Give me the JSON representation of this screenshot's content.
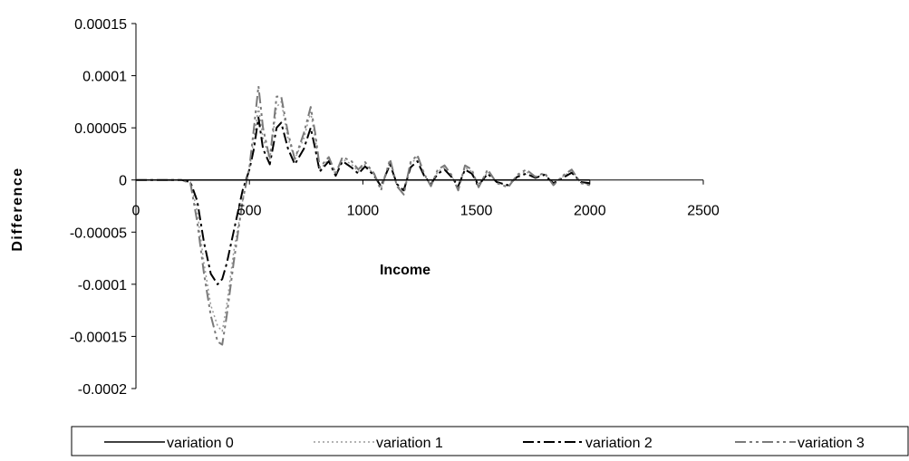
{
  "chart_data": {
    "type": "line",
    "title": "",
    "xlabel": "Income",
    "ylabel": "Difference",
    "xlim": [
      0,
      2500
    ],
    "ylim": [
      -0.0002,
      0.00015
    ],
    "x_ticks": [
      0,
      500,
      1000,
      1500,
      2000,
      2500
    ],
    "x_tick_labels": [
      "0",
      "500",
      "1000",
      "1500",
      "2000",
      "2500"
    ],
    "y_ticks": [
      0.00015,
      0.0001,
      5e-05,
      0,
      -5e-05,
      -0.0001,
      -0.00015,
      -0.0002
    ],
    "y_tick_labels": [
      "0.00015",
      "0.0001",
      "0.00005",
      "0",
      "-0.00005",
      "-0.0001",
      "-0.00015",
      "-0.0002"
    ],
    "grid": false,
    "legend_position": "bottom",
    "series": [
      {
        "name": "variation 0",
        "color": "#000000",
        "dash": "solid",
        "x": [
          0,
          2000
        ],
        "y": [
          0,
          0
        ]
      },
      {
        "name": "variation 1",
        "color": "#9a9a9a",
        "dash": "dotted",
        "x": [
          0,
          200,
          240,
          270,
          300,
          330,
          360,
          380,
          400,
          430,
          470,
          500,
          520,
          540,
          560,
          590,
          620,
          640,
          670,
          700,
          740,
          770,
          790,
          810,
          850,
          880,
          910,
          950,
          980,
          1010,
          1050,
          1080,
          1120,
          1150,
          1180,
          1210,
          1240,
          1270,
          1300,
          1330,
          1360,
          1390,
          1420,
          1450,
          1480,
          1510,
          1550,
          1590,
          1640,
          1680,
          1720,
          1760,
          1800,
          1840,
          1880,
          1920,
          1960,
          2000
        ],
        "y": [
          0,
          0,
          -2e-06,
          -3e-05,
          -8e-05,
          -0.00012,
          -0.00014,
          -0.000145,
          -0.00012,
          -7e-05,
          -2e-05,
          1e-05,
          4e-05,
          7e-05,
          4e-05,
          2e-05,
          7e-05,
          7.5e-05,
          4e-05,
          2e-05,
          4e-05,
          6.5e-05,
          4e-05,
          1e-05,
          2e-05,
          5e-06,
          2e-05,
          1.5e-05,
          8e-06,
          1.5e-05,
          5e-06,
          -8e-06,
          1.8e-05,
          -5e-06,
          -1.2e-05,
          1.5e-05,
          2.2e-05,
          5e-06,
          -5e-06,
          8e-06,
          1.2e-05,
          4e-06,
          -8e-06,
          1.2e-05,
          8e-06,
          -6e-06,
          8e-06,
          -2e-06,
          -6e-06,
          4e-06,
          8e-06,
          2e-06,
          6e-06,
          -4e-06,
          3e-06,
          9e-06,
          -3e-06,
          -4e-06
        ]
      },
      {
        "name": "variation 2",
        "color": "#000000",
        "dash": "dashdot",
        "x": [
          0,
          200,
          240,
          270,
          300,
          330,
          360,
          380,
          400,
          430,
          470,
          500,
          520,
          540,
          560,
          590,
          620,
          640,
          670,
          700,
          740,
          770,
          790,
          810,
          850,
          880,
          910,
          950,
          980,
          1010,
          1050,
          1080,
          1120,
          1150,
          1180,
          1210,
          1240,
          1270,
          1300,
          1330,
          1360,
          1390,
          1420,
          1450,
          1480,
          1510,
          1550,
          1590,
          1640,
          1680,
          1720,
          1760,
          1800,
          1840,
          1880,
          1920,
          1960,
          2000
        ],
        "y": [
          0,
          0,
          -2e-06,
          -2e-05,
          -6e-05,
          -9e-05,
          -0.0001,
          -9.5e-05,
          -8e-05,
          -5e-05,
          -1e-05,
          1e-05,
          3e-05,
          6e-05,
          3e-05,
          1.5e-05,
          5e-05,
          5.5e-05,
          3e-05,
          1.5e-05,
          3e-05,
          5e-05,
          3e-05,
          8e-06,
          1.8e-05,
          4e-06,
          1.8e-05,
          1.2e-05,
          6e-06,
          1.3e-05,
          4e-06,
          -6e-06,
          1.5e-05,
          -4e-06,
          -1e-05,
          1.2e-05,
          1.8e-05,
          4e-06,
          -4e-06,
          6e-06,
          1e-05,
          3e-06,
          -6e-06,
          1e-05,
          6e-06,
          -5e-06,
          6e-06,
          -2e-06,
          -5e-06,
          3e-06,
          6e-06,
          2e-06,
          5e-06,
          -3e-06,
          2e-06,
          7e-06,
          -2e-06,
          -3e-06
        ]
      },
      {
        "name": "variation 3",
        "color": "#7a7a7a",
        "dash": "dashdotdot",
        "x": [
          0,
          200,
          240,
          270,
          300,
          330,
          360,
          380,
          400,
          430,
          470,
          500,
          520,
          540,
          560,
          590,
          620,
          640,
          670,
          700,
          740,
          770,
          790,
          810,
          850,
          880,
          910,
          950,
          980,
          1010,
          1050,
          1080,
          1120,
          1150,
          1180,
          1210,
          1240,
          1270,
          1300,
          1330,
          1360,
          1390,
          1420,
          1450,
          1480,
          1510,
          1550,
          1590,
          1640,
          1680,
          1720,
          1760,
          1800,
          1840,
          1880,
          1920,
          1960,
          2000
        ],
        "y": [
          0,
          0,
          -3e-06,
          -4e-05,
          -9e-05,
          -0.00013,
          -0.000155,
          -0.000158,
          -0.00013,
          -8e-05,
          -2e-05,
          1.2e-05,
          5e-05,
          9e-05,
          5e-05,
          2e-05,
          8e-05,
          8e-05,
          4.5e-05,
          2e-05,
          4.5e-05,
          7e-05,
          4.5e-05,
          1.2e-05,
          2.2e-05,
          6e-06,
          2.2e-05,
          1.8e-05,
          1e-05,
          1.7e-05,
          6e-06,
          -1e-05,
          2e-05,
          -6e-06,
          -1.4e-05,
          1.7e-05,
          2.4e-05,
          6e-06,
          -6e-06,
          1e-05,
          1.4e-05,
          5e-06,
          -1e-05,
          1.4e-05,
          1e-05,
          -7e-06,
          1e-05,
          -3e-06,
          -7e-06,
          5e-06,
          1e-05,
          3e-06,
          7e-06,
          -5e-06,
          4e-06,
          1e-05,
          -3e-06,
          -5e-06
        ]
      }
    ]
  }
}
